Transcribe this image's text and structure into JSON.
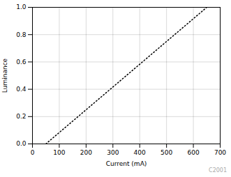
{
  "chart_data": {
    "type": "line",
    "x": [
      50,
      650
    ],
    "values": [
      0,
      1
    ],
    "xlabel": "Current (mA)",
    "ylabel": "Luminance",
    "xlim": [
      0,
      700
    ],
    "ylim": [
      0,
      1
    ],
    "xticks": [
      0,
      100,
      200,
      300,
      400,
      500,
      600,
      700
    ],
    "yticks": [
      {
        "value": 0,
        "label": "0.0"
      },
      0.2,
      0.4,
      0.6,
      0.8,
      {
        "value": 1,
        "label": "1.0"
      }
    ],
    "color": "#000000",
    "line_style": "dotted",
    "grid": true,
    "annotations": [
      "C2001"
    ]
  }
}
